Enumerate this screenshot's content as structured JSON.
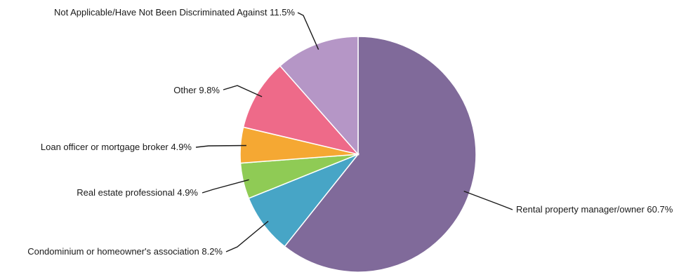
{
  "chart_data": {
    "type": "pie",
    "title": "",
    "slices": [
      {
        "label": "Rental property manager/owner",
        "value": 60.7,
        "display": "Rental property manager/owner 60.7%",
        "color": "#806a9a"
      },
      {
        "label": "Condominium or homeowner's association",
        "value": 8.2,
        "display": "Condominium or homeowner's association 8.2%",
        "color": "#47a5c6"
      },
      {
        "label": "Real estate professional",
        "value": 4.9,
        "display": "Real estate professional 4.9%",
        "color": "#8fcb55"
      },
      {
        "label": "Loan officer or mortgage broker",
        "value": 4.9,
        "display": "Loan officer or mortgage broker 4.9%",
        "color": "#f5a833"
      },
      {
        "label": "Other",
        "value": 9.8,
        "display": "Other 9.8%",
        "color": "#ee6a89"
      },
      {
        "label": "Not Applicable/Have Not Been Discriminated Against",
        "value": 11.5,
        "display": "Not Applicable/Have Not Been Discriminated Against 11.5%",
        "color": "#b596c6"
      }
    ],
    "start": "12 o'clock",
    "direction": "clockwise",
    "legend": "none"
  }
}
